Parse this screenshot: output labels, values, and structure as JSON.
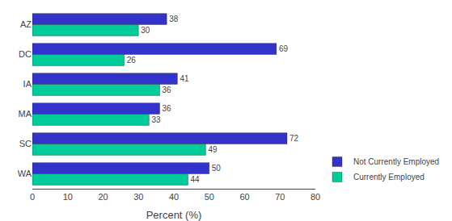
{
  "chart_data": {
    "type": "bar",
    "orientation": "horizontal",
    "categories": [
      "AZ",
      "DC",
      "IA",
      "MA",
      "SC",
      "WA"
    ],
    "series": [
      {
        "name": "Not Currently Employed",
        "color": "#3333cc",
        "values": [
          38,
          69,
          41,
          36,
          72,
          50
        ]
      },
      {
        "name": "Currently Employed",
        "color": "#00cc99",
        "values": [
          30,
          26,
          36,
          33,
          49,
          44
        ]
      }
    ],
    "xlabel": "Percent (%)",
    "xlim": [
      0,
      80
    ],
    "xticks": [
      0,
      10,
      20,
      30,
      40,
      50,
      60,
      70,
      80
    ],
    "grid": false,
    "legend": "lower right",
    "data_labels": true
  }
}
